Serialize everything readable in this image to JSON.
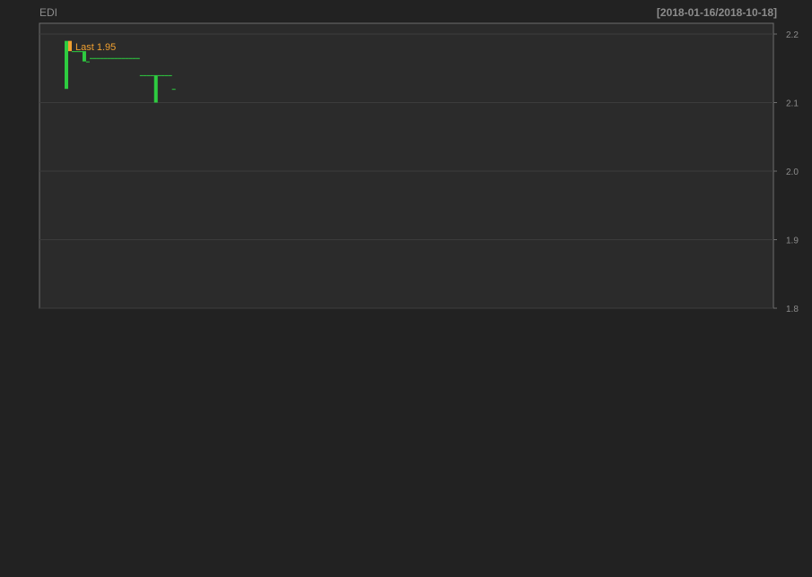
{
  "header": {
    "symbol": "EDI",
    "date_range": "[2018-01-16/2018-10-18]"
  },
  "colors": {
    "background": "#222222",
    "panel": "#2b2b2b",
    "border": "#6e6e6e",
    "grid": "#3c3c3c",
    "up": "#2ecc40",
    "down": "#f0a030",
    "text": "#8c8c8c",
    "ma": "#b01f1f",
    "level": "#ffe45c",
    "macd_line": "#ffffff",
    "signal_line": "#cc2222",
    "hist": "#8a8a8a"
  },
  "chart_data": [
    {
      "type": "candlestick",
      "panel": "price",
      "label": "Last 1.95",
      "y_ticks": [
        "2.2",
        "2.1",
        "2.0",
        "1.9",
        "1.8"
      ],
      "ylim": [
        1.8,
        2.2
      ],
      "xlim": [
        0,
        195
      ],
      "grid": true,
      "bars": [
        {
          "i": 0,
          "o": 2.12,
          "c": 2.19,
          "h": 2.19,
          "l": 2.12
        },
        {
          "i": 1,
          "o": 2.19,
          "c": 2.175,
          "h": 2.19,
          "l": 2.175
        },
        {
          "i": 2,
          "o": 2.175,
          "c": 2.175,
          "h": 2.175,
          "l": 2.175
        },
        {
          "i": 3,
          "o": 2.175,
          "c": 2.175,
          "h": 2.175,
          "l": 2.175
        },
        {
          "i": 4,
          "o": 2.175,
          "c": 2.175,
          "h": 2.175,
          "l": 2.175
        },
        {
          "i": 5,
          "o": 2.16,
          "c": 2.175,
          "h": 2.175,
          "l": 2.16
        },
        {
          "i": 6,
          "o": 2.16,
          "c": 2.16,
          "h": 2.16,
          "l": 2.16
        },
        {
          "i": 7,
          "o": 2.165,
          "c": 2.165,
          "h": 2.165,
          "l": 2.165
        },
        {
          "i": 8,
          "o": 2.165,
          "c": 2.165,
          "h": 2.165,
          "l": 2.165
        },
        {
          "i": 9,
          "o": 2.165,
          "c": 2.165,
          "h": 2.165,
          "l": 2.165
        },
        {
          "i": 10,
          "o": 2.165,
          "c": 2.165,
          "h": 2.165,
          "l": 2.165
        },
        {
          "i": 11,
          "o": 2.165,
          "c": 2.165,
          "h": 2.165,
          "l": 2.165
        },
        {
          "i": 12,
          "o": 2.165,
          "c": 2.165,
          "h": 2.165,
          "l": 2.165
        },
        {
          "i": 13,
          "o": 2.165,
          "c": 2.165,
          "h": 2.165,
          "l": 2.165
        },
        {
          "i": 14,
          "o": 2.165,
          "c": 2.165,
          "h": 2.165,
          "l": 2.165
        },
        {
          "i": 15,
          "o": 2.165,
          "c": 2.165,
          "h": 2.165,
          "l": 2.165
        },
        {
          "i": 16,
          "o": 2.165,
          "c": 2.165,
          "h": 2.165,
          "l": 2.165
        },
        {
          "i": 17,
          "o": 2.165,
          "c": 2.165,
          "h": 2.165,
          "l": 2.165
        },
        {
          "i": 18,
          "o": 2.165,
          "c": 2.165,
          "h": 2.165,
          "l": 2.165
        },
        {
          "i": 19,
          "o": 2.165,
          "c": 2.165,
          "h": 2.165,
          "l": 2.165
        },
        {
          "i": 20,
          "o": 2.165,
          "c": 2.165,
          "h": 2.165,
          "l": 2.165
        },
        {
          "i": 21,
          "o": 2.14,
          "c": 2.14,
          "h": 2.14,
          "l": 2.14
        },
        {
          "i": 22,
          "o": 2.14,
          "c": 2.14,
          "h": 2.14,
          "l": 2.14
        },
        {
          "i": 23,
          "o": 2.14,
          "c": 2.14,
          "h": 2.14,
          "l": 2.14
        },
        {
          "i": 24,
          "o": 2.14,
          "c": 2.14,
          "h": 2.14,
          "l": 2.14
        },
        {
          "i": 25,
          "o": 2.1,
          "c": 2.14,
          "h": 2.14,
          "l": 2.1
        },
        {
          "i": 26,
          "o": 2.14,
          "c": 2.14,
          "h": 2.14,
          "l": 2.14
        },
        {
          "i": 27,
          "o": 2.14,
          "c": 2.14,
          "h": 2.14,
          "l": 2.14
        },
        {
          "i": 28,
          "o": 2.14,
          "c": 2.14,
          "h": 2.14,
          "l": 2.14
        },
        {
          "i": 29,
          "o": 2.14,
          "c": 2.14,
          "h": 2.14,
          "l": 2.14
        },
        {
          "i": 30,
          "o": 2.12,
          "c": 2.12,
          "h": 2.12,
          "l": 2.12
        }
      ]
    }
  ]
}
